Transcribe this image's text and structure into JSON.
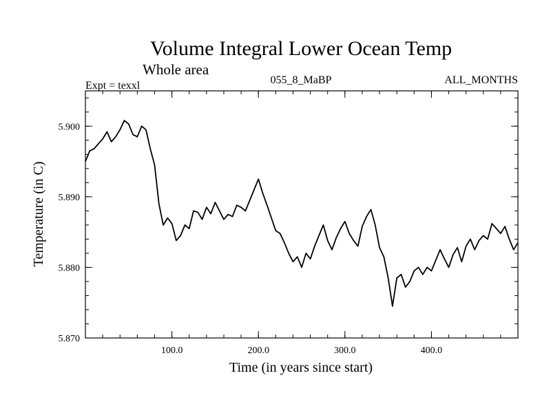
{
  "chart_data": {
    "type": "line",
    "title": "Volume Integral Lower Ocean Temp",
    "subtitle": "Whole area",
    "annotations": {
      "left": "Expt = texxl",
      "center": "055_8_MaBP",
      "right": "ALL_MONTHS"
    },
    "xlabel": "Time (in years since start)",
    "ylabel": "Temperature (in C)",
    "xlim": [
      0,
      500
    ],
    "ylim": [
      5.87,
      5.905
    ],
    "x_ticks": [
      100,
      200,
      300,
      400
    ],
    "x_tick_labels": [
      "100.0",
      "200.0",
      "300.0",
      "400.0"
    ],
    "y_ticks": [
      5.87,
      5.88,
      5.89,
      5.9
    ],
    "y_tick_labels": [
      "5.870",
      "5.880",
      "5.890",
      "5.900"
    ],
    "x_minor_step": 20,
    "y_minor_step": 0.002,
    "grid": false,
    "series": [
      {
        "name": "Volume Integral Lower Ocean Temp",
        "x": [
          0,
          5,
          10,
          15,
          20,
          25,
          30,
          35,
          40,
          45,
          50,
          55,
          60,
          65,
          70,
          75,
          80,
          85,
          90,
          95,
          100,
          105,
          110,
          115,
          120,
          125,
          130,
          135,
          140,
          145,
          150,
          155,
          160,
          165,
          170,
          175,
          180,
          185,
          190,
          195,
          200,
          205,
          210,
          215,
          220,
          225,
          230,
          235,
          240,
          245,
          250,
          255,
          260,
          265,
          270,
          275,
          280,
          285,
          290,
          295,
          300,
          305,
          310,
          315,
          320,
          325,
          330,
          335,
          340,
          345,
          350,
          355,
          360,
          365,
          370,
          375,
          380,
          385,
          390,
          395,
          400,
          405,
          410,
          415,
          420,
          425,
          430,
          435,
          440,
          445,
          450,
          455,
          460,
          465,
          470,
          475,
          480,
          485,
          490,
          495,
          500
        ],
        "values": [
          5.895,
          5.8965,
          5.8968,
          5.8975,
          5.8982,
          5.8992,
          5.8978,
          5.8985,
          5.8995,
          5.9008,
          5.9003,
          5.8988,
          5.8985,
          5.9,
          5.8995,
          5.8968,
          5.8945,
          5.889,
          5.886,
          5.887,
          5.8862,
          5.8838,
          5.8845,
          5.886,
          5.8855,
          5.888,
          5.8878,
          5.8868,
          5.8885,
          5.8876,
          5.8892,
          5.888,
          5.8868,
          5.8875,
          5.8872,
          5.8888,
          5.8885,
          5.888,
          5.8895,
          5.891,
          5.8925,
          5.8905,
          5.8888,
          5.887,
          5.8852,
          5.8848,
          5.8835,
          5.882,
          5.8808,
          5.8815,
          5.88,
          5.882,
          5.8812,
          5.883,
          5.8845,
          5.886,
          5.8838,
          5.8825,
          5.8842,
          5.8855,
          5.8865,
          5.8848,
          5.8838,
          5.883,
          5.8858,
          5.8872,
          5.8882,
          5.886,
          5.8828,
          5.8815,
          5.8785,
          5.8745,
          5.8785,
          5.879,
          5.8772,
          5.878,
          5.8795,
          5.88,
          5.879,
          5.88,
          5.8795,
          5.881,
          5.8825,
          5.8812,
          5.88,
          5.8818,
          5.8828,
          5.8808,
          5.883,
          5.884,
          5.8825,
          5.8838,
          5.8845,
          5.884,
          5.8862,
          5.8855,
          5.8848,
          5.8858,
          5.884,
          5.8825,
          5.8835
        ]
      }
    ]
  }
}
